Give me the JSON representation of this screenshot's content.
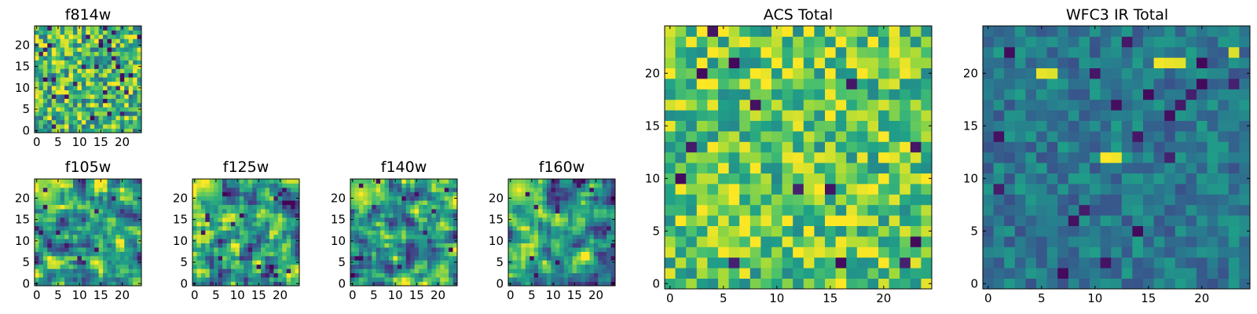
{
  "figure": {
    "colormap": "viridis",
    "cmap_stops": [
      "#440154",
      "#46327e",
      "#365c8d",
      "#277f8e",
      "#1fa187",
      "#4ac16d",
      "#a0da39",
      "#fde725"
    ]
  },
  "chart_data": [
    {
      "type": "heatmap",
      "title": "f814w",
      "grid": [
        25,
        25
      ],
      "xlim": [
        -0.5,
        24.5
      ],
      "ylim": [
        -0.5,
        24.5
      ],
      "xticks": [
        "0",
        "5",
        "10",
        "15",
        "20"
      ],
      "yticks": [
        "0",
        "5",
        "10",
        "15",
        "20"
      ],
      "value_range": [
        0,
        1
      ],
      "mean_level": 0.68,
      "noise": 0.2,
      "smooth": 0,
      "seed": 11,
      "hotspots": [],
      "darkspots": 32
    },
    {
      "type": "heatmap",
      "title": "f105w",
      "grid": [
        25,
        25
      ],
      "xlim": [
        -0.5,
        24.5
      ],
      "ylim": [
        -0.5,
        24.5
      ],
      "xticks": [
        "0",
        "5",
        "10",
        "15",
        "20"
      ],
      "yticks": [
        "0",
        "5",
        "10",
        "15",
        "20"
      ],
      "value_range": [
        0,
        1
      ],
      "mean_level": 0.56,
      "noise": 0.2,
      "smooth": 1,
      "seed": 23,
      "hotspots": [
        {
          "x": 2,
          "y": 21,
          "value": 0.95
        }
      ],
      "darkspots": 10
    },
    {
      "type": "heatmap",
      "title": "f125w",
      "grid": [
        25,
        25
      ],
      "xlim": [
        -0.5,
        24.5
      ],
      "ylim": [
        -0.5,
        24.5
      ],
      "xticks": [
        "0",
        "5",
        "10",
        "15",
        "20"
      ],
      "yticks": [
        "0",
        "5",
        "10",
        "15",
        "20"
      ],
      "value_range": [
        0,
        1
      ],
      "mean_level": 0.56,
      "noise": 0.22,
      "smooth": 1,
      "seed": 37,
      "hotspots": [
        {
          "x": 3,
          "y": 23,
          "value": 0.95
        }
      ],
      "darkspots": 14
    },
    {
      "type": "heatmap",
      "title": "f140w",
      "grid": [
        25,
        25
      ],
      "xlim": [
        -0.5,
        24.5
      ],
      "ylim": [
        -0.5,
        24.5
      ],
      "xticks": [
        "0",
        "5",
        "10",
        "15",
        "20"
      ],
      "yticks": [
        "0",
        "5",
        "10",
        "15",
        "20"
      ],
      "value_range": [
        0,
        1
      ],
      "mean_level": 0.54,
      "noise": 0.2,
      "smooth": 1,
      "seed": 41,
      "hotspots": [
        {
          "x": 2,
          "y": 21,
          "value": 1.0
        }
      ],
      "darkspots": 10
    },
    {
      "type": "heatmap",
      "title": "f160w",
      "grid": [
        25,
        25
      ],
      "xlim": [
        -0.5,
        24.5
      ],
      "ylim": [
        -0.5,
        24.5
      ],
      "xticks": [
        "0",
        "5",
        "10",
        "15",
        "20"
      ],
      "yticks": [
        "0",
        "5",
        "10",
        "15",
        "20"
      ],
      "value_range": [
        0,
        1
      ],
      "mean_level": 0.52,
      "noise": 0.2,
      "smooth": 1,
      "seed": 53,
      "hotspots": [
        {
          "x": 2,
          "y": 22,
          "value": 1.0
        }
      ],
      "darkspots": 12
    },
    {
      "type": "heatmap",
      "title": "ACS Total",
      "grid": [
        25,
        25
      ],
      "xlim": [
        -0.5,
        24.5
      ],
      "ylim": [
        -0.5,
        24.5
      ],
      "xticks": [
        "0",
        "5",
        "10",
        "15",
        "20"
      ],
      "yticks": [
        "0",
        "5",
        "10",
        "15",
        "20"
      ],
      "value_range": [
        0,
        1
      ],
      "mean_level": 0.74,
      "noise": 0.17,
      "smooth": 0,
      "seed": 67,
      "hotspots": [],
      "darkspots": 14
    },
    {
      "type": "heatmap",
      "title": "WFC3 IR Total",
      "grid": [
        25,
        25
      ],
      "xlim": [
        -0.5,
        24.5
      ],
      "ylim": [
        -0.5,
        24.5
      ],
      "xticks": [
        "0",
        "5",
        "10",
        "15",
        "20"
      ],
      "yticks": [
        "0",
        "5",
        "10",
        "15",
        "20"
      ],
      "value_range": [
        0,
        1
      ],
      "mean_level": 0.4,
      "noise": 0.09,
      "smooth": 0,
      "seed": 79,
      "hotspots": [
        {
          "x": 5,
          "y": 20,
          "value": 0.97
        },
        {
          "x": 6,
          "y": 20,
          "value": 0.95
        },
        {
          "x": 16,
          "y": 21,
          "value": 0.98
        },
        {
          "x": 17,
          "y": 21,
          "value": 0.97
        },
        {
          "x": 18,
          "y": 21,
          "value": 0.96
        },
        {
          "x": 11,
          "y": 12,
          "value": 1.0
        },
        {
          "x": 12,
          "y": 12,
          "value": 0.98
        },
        {
          "x": 18,
          "y": 17,
          "value": 0.9
        },
        {
          "x": 23,
          "y": 22,
          "value": 0.95
        }
      ],
      "darkspots": 20
    }
  ]
}
